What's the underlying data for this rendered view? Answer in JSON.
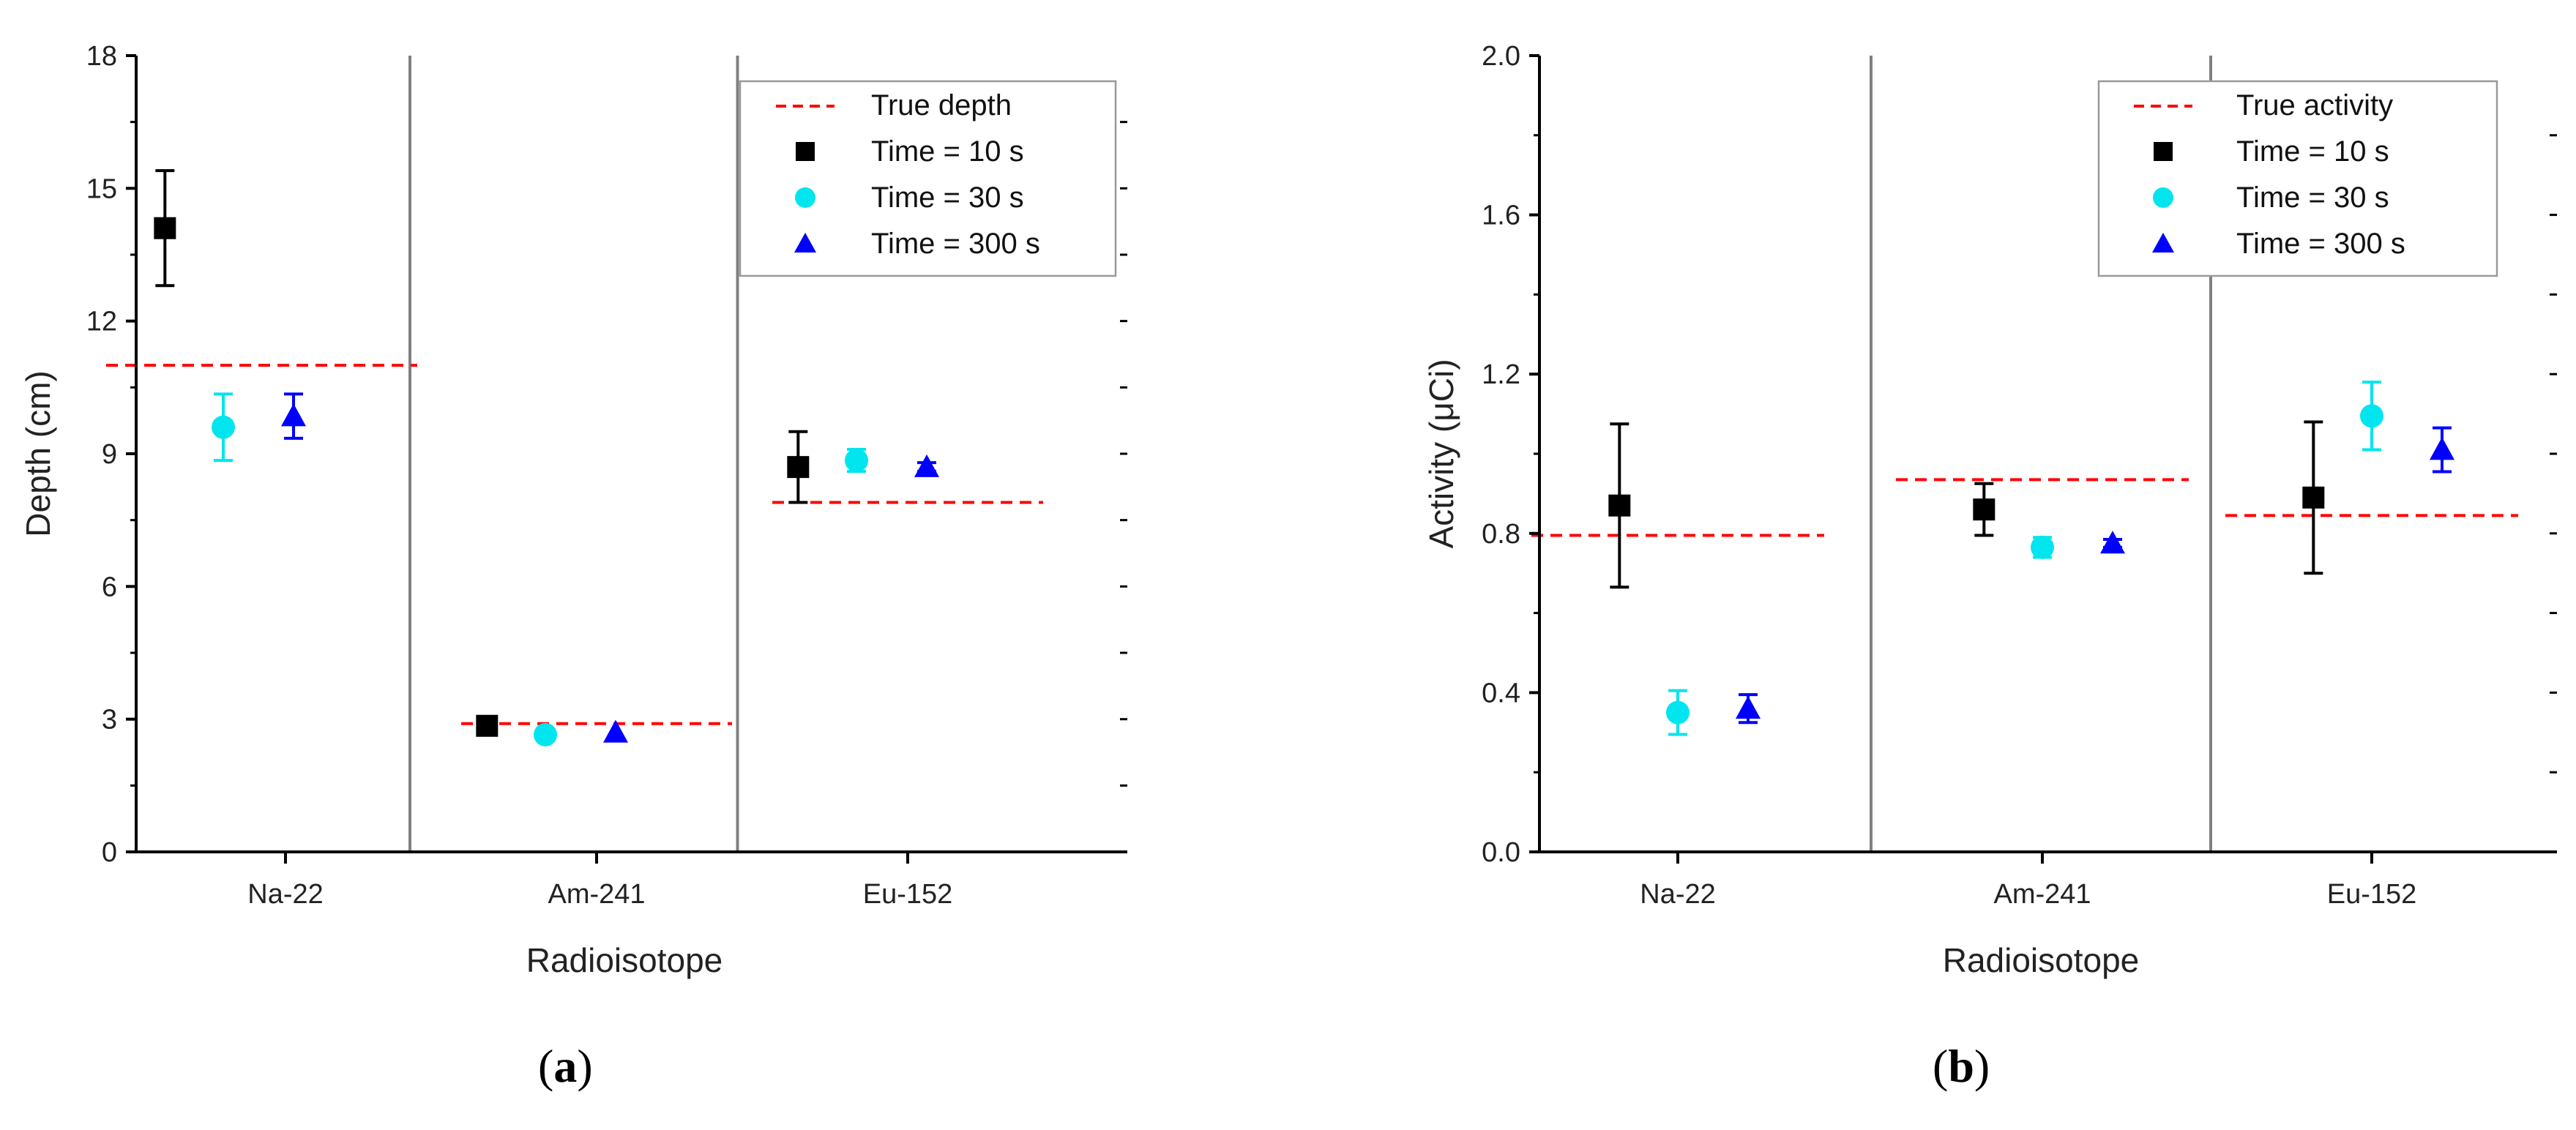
{
  "chart_data": [
    {
      "type": "scatter",
      "panel_label": "a",
      "xlabel": "Radioisotope",
      "ylabel": "Depth (cm)",
      "categories": [
        "Na-22",
        "Am-241",
        "Eu-152"
      ],
      "ylim": [
        0,
        18
      ],
      "yticks": [
        0,
        3,
        6,
        9,
        12,
        15,
        18
      ],
      "ytick_labels": [
        "0",
        "3",
        "6",
        "9",
        "12",
        "15",
        "18"
      ],
      "minor_ytick_step": 1.5,
      "reference_label": "True depth",
      "reference_values": [
        11.0,
        2.9,
        7.9
      ],
      "series": [
        {
          "name": "Time = 10 s",
          "marker": "square",
          "color": "#000000",
          "values": [
            14.1,
            2.85,
            8.7
          ],
          "errors": [
            1.3,
            0.0,
            0.8
          ]
        },
        {
          "name": "Time = 30 s",
          "marker": "circle",
          "color": "#00e5ee",
          "values": [
            9.6,
            2.65,
            8.85
          ],
          "errors": [
            0.75,
            0.0,
            0.25
          ]
        },
        {
          "name": "Time = 300 s",
          "marker": "triangle",
          "color": "#0000ff",
          "values": [
            9.85,
            2.7,
            8.7
          ],
          "errors": [
            0.5,
            0.0,
            0.1
          ]
        }
      ],
      "legend_position": "top-right"
    },
    {
      "type": "scatter",
      "panel_label": "b",
      "xlabel": "Radioisotope",
      "ylabel": "Activity (μCi)",
      "categories": [
        "Na-22",
        "Am-241",
        "Eu-152"
      ],
      "ylim": [
        0,
        2.0
      ],
      "yticks": [
        0,
        0.4,
        0.8,
        1.2,
        1.6,
        2.0
      ],
      "ytick_labels": [
        "0.0",
        "0.4",
        "0.8",
        "1.2",
        "1.6",
        "2.0"
      ],
      "minor_ytick_step": 0.2,
      "reference_label": "True activity",
      "reference_values": [
        0.795,
        0.935,
        0.845
      ],
      "series": [
        {
          "name": "Time = 10 s",
          "marker": "square",
          "color": "#000000",
          "values": [
            0.87,
            0.86,
            0.89
          ],
          "errors": [
            0.205,
            0.065,
            0.19
          ]
        },
        {
          "name": "Time = 30 s",
          "marker": "circle",
          "color": "#00e5ee",
          "values": [
            0.35,
            0.765,
            1.095
          ],
          "errors": [
            0.055,
            0.025,
            0.085
          ]
        },
        {
          "name": "Time = 300 s",
          "marker": "triangle",
          "color": "#0000ff",
          "values": [
            0.36,
            0.775,
            1.01
          ],
          "errors": [
            0.035,
            0.01,
            0.055
          ]
        }
      ],
      "legend_position": "top-right"
    }
  ],
  "colors": {
    "reference_line": "#ff0000",
    "divider": "#808080",
    "axis": "#000000"
  },
  "captions": [
    "a",
    "b"
  ]
}
